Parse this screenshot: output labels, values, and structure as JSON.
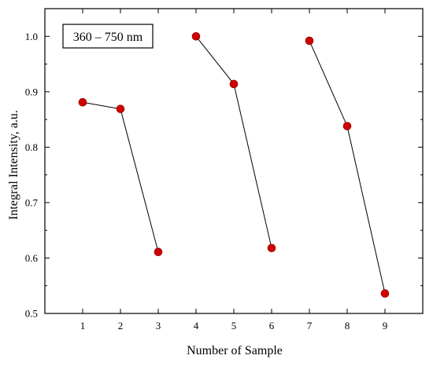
{
  "chart_data": {
    "type": "line",
    "xlabel": "Number of Sample",
    "ylabel": "Integral Intensity, a.u.",
    "annotation": "360 – 750 nm",
    "xlim": [
      0,
      10
    ],
    "ylim": [
      0.5,
      1.05
    ],
    "x_ticks": [
      1,
      2,
      3,
      4,
      5,
      6,
      7,
      8,
      9
    ],
    "y_ticks": [
      0.5,
      0.6,
      0.7,
      0.8,
      0.9,
      1.0
    ],
    "y_tick_labels": [
      "0.5",
      "0.6",
      "0.7",
      "0.8",
      "0.9",
      "1.0"
    ],
    "marker_color": "#cc0000",
    "line_color": "#000000",
    "grid": false,
    "segments": [
      {
        "x": [
          1,
          2,
          3
        ],
        "y": [
          0.881,
          0.869,
          0.611
        ]
      },
      {
        "x": [
          4,
          5,
          6
        ],
        "y": [
          1.0,
          0.914,
          0.618
        ]
      },
      {
        "x": [
          7,
          8,
          9
        ],
        "y": [
          0.992,
          0.838,
          0.536
        ]
      }
    ]
  }
}
